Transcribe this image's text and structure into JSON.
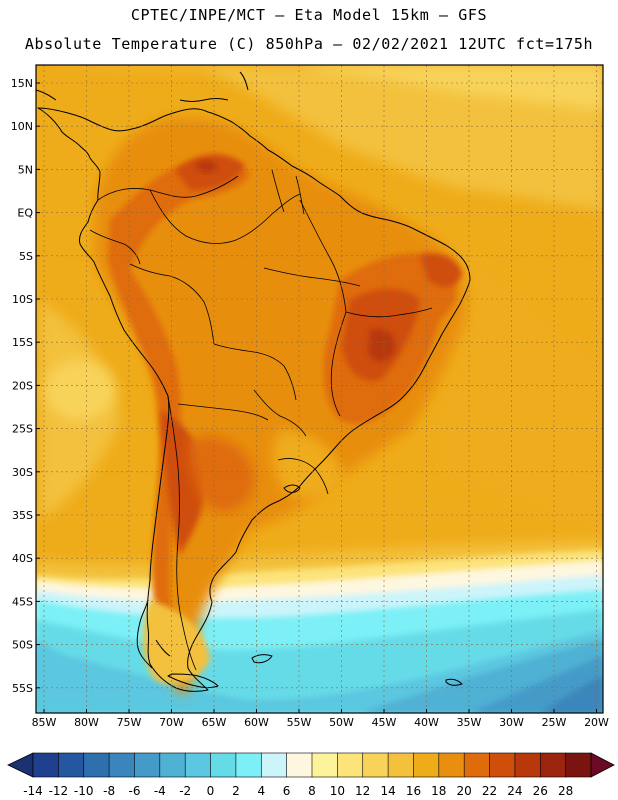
{
  "header": {
    "line1": "CPTEC/INPE/MCT –  Eta Model 15km – GFS",
    "line2": "Absolute Temperature (C) 850hPa – 02/02/2021 12UTC fct=175h"
  },
  "axes": {
    "lat_labels": [
      "15N",
      "10N",
      "5N",
      "EQ",
      "5S",
      "10S",
      "15S",
      "20S",
      "25S",
      "30S",
      "35S",
      "40S",
      "45S",
      "50S",
      "55S"
    ],
    "lon_labels": [
      "85W",
      "80W",
      "75W",
      "70W",
      "65W",
      "60W",
      "55W",
      "50W",
      "45W",
      "40W",
      "35W",
      "30W",
      "25W",
      "20W"
    ]
  },
  "colorbar": {
    "labels": [
      "-14",
      "-12",
      "-10",
      "-8",
      "-6",
      "-4",
      "-2",
      "0",
      "2",
      "4",
      "6",
      "8",
      "10",
      "12",
      "14",
      "16",
      "18",
      "20",
      "22",
      "24",
      "26",
      "28"
    ],
    "colors": [
      "#1f3f8f",
      "#2556a0",
      "#2e6fae",
      "#3a86bc",
      "#449bc8",
      "#4fb1d4",
      "#5bc7e0",
      "#66dbe8",
      "#7cf0f6",
      "#ccf4fb",
      "#fef7e0",
      "#fdf39a",
      "#fce37a",
      "#f8d35a",
      "#f3c13c",
      "#efac1a",
      "#e88e10",
      "#df6c0c",
      "#cf4e0b",
      "#b8380b",
      "#9a240e",
      "#7a1410"
    ]
  }
}
